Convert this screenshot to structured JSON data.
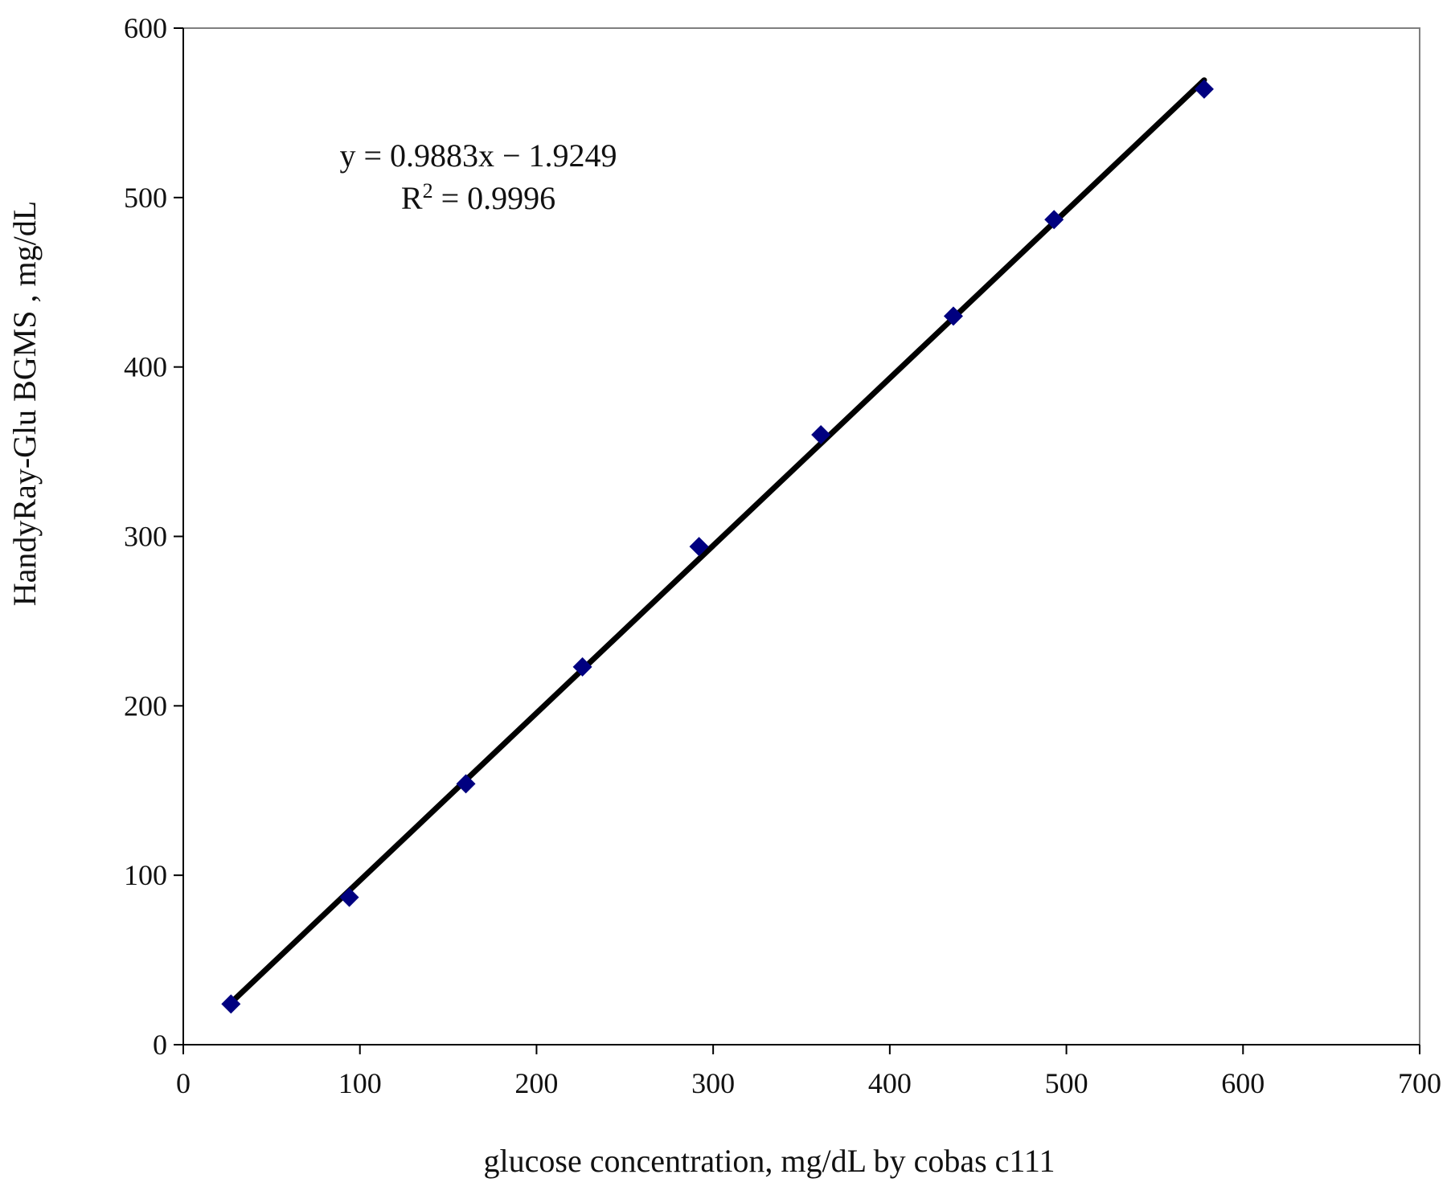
{
  "chart_data": {
    "type": "scatter",
    "title": "",
    "xlabel": "glucose concentration, mg/dL  by cobas c111",
    "ylabel": "HandyRay-Glu  BGMS , mg/dL",
    "xlim": [
      0,
      700
    ],
    "ylim": [
      0,
      600
    ],
    "x_ticks": [
      "0",
      "100",
      "200",
      "300",
      "400",
      "500",
      "600",
      "700"
    ],
    "y_ticks": [
      "0",
      "100",
      "200",
      "300",
      "400",
      "500",
      "600"
    ],
    "x_tick_values": [
      0,
      100,
      200,
      300,
      400,
      500,
      600,
      700
    ],
    "y_tick_values": [
      0,
      100,
      200,
      300,
      400,
      500,
      600
    ],
    "grid": false,
    "series": [
      {
        "marker": "diamond",
        "color": "#000080",
        "points": [
          {
            "x": 27,
            "y": 24
          },
          {
            "x": 94,
            "y": 87
          },
          {
            "x": 160,
            "y": 154
          },
          {
            "x": 226,
            "y": 223
          },
          {
            "x": 292,
            "y": 294
          },
          {
            "x": 361,
            "y": 360
          },
          {
            "x": 436,
            "y": 430
          },
          {
            "x": 493,
            "y": 487
          },
          {
            "x": 578,
            "y": 564
          }
        ]
      }
    ],
    "trendline": {
      "slope": 0.9883,
      "intercept": -1.9249,
      "x_range": [
        27,
        578
      ],
      "color": "#000000"
    },
    "annotations": {
      "equation": "y = 0.9883x − 1.9249",
      "r_squared_prefix": "R",
      "r_squared_sup": "2",
      "r_squared_suffix": " = 0.9996"
    }
  }
}
